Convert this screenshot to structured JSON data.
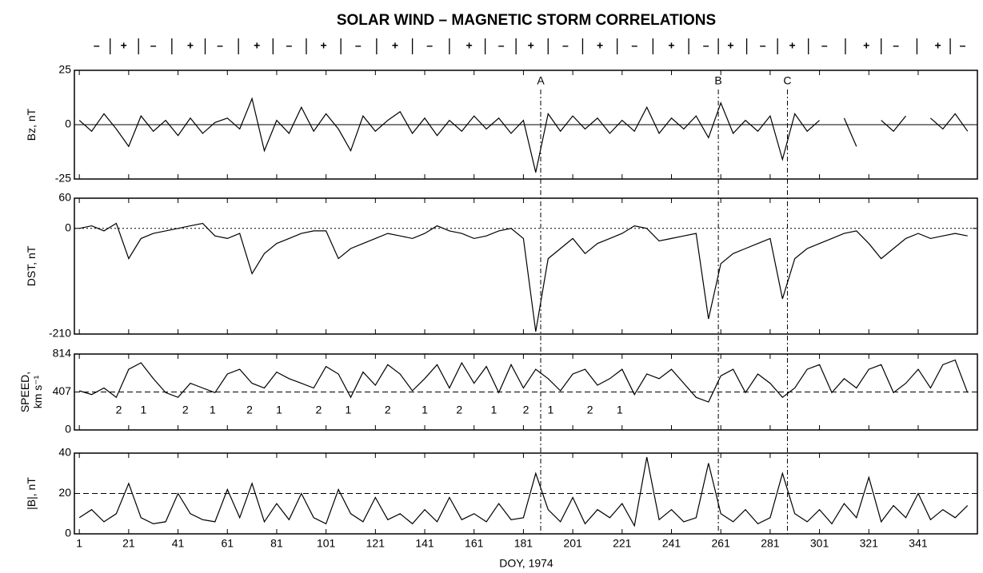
{
  "chart_data": [
    {
      "type": "line",
      "title": "SOLAR WIND – MAGNETIC STORM CORRELATIONS",
      "ylabel": [
        "Bz, nT"
      ],
      "color": "#000000",
      "xlim": [
        -1,
        365
      ],
      "ylim": [
        -25,
        25
      ],
      "yticks": [
        -25,
        0,
        25
      ],
      "ref_line": {
        "value": 0,
        "dash": "solid"
      },
      "sectors": [
        {
          "text": "–",
          "x": 8
        },
        {
          "text": "+",
          "x": 19
        },
        {
          "text": "–",
          "x": 31
        },
        {
          "text": "+",
          "x": 46
        },
        {
          "text": "–",
          "x": 58
        },
        {
          "text": "+",
          "x": 73
        },
        {
          "text": "–",
          "x": 86
        },
        {
          "text": "+",
          "x": 100
        },
        {
          "text": "–",
          "x": 114
        },
        {
          "text": "+",
          "x": 129
        },
        {
          "text": "–",
          "x": 143
        },
        {
          "text": "+",
          "x": 159
        },
        {
          "text": "–",
          "x": 172
        },
        {
          "text": "+",
          "x": 184
        },
        {
          "text": "–",
          "x": 198
        },
        {
          "text": "+",
          "x": 212
        },
        {
          "text": "–",
          "x": 226
        },
        {
          "text": "+",
          "x": 241
        },
        {
          "text": "–",
          "x": 255
        },
        {
          "text": "+",
          "x": 265
        },
        {
          "text": "–",
          "x": 278
        },
        {
          "text": "+",
          "x": 290
        },
        {
          "text": "–",
          "x": 303
        },
        {
          "text": "+",
          "x": 320
        },
        {
          "text": "–",
          "x": 332
        },
        {
          "text": "+",
          "x": 349
        },
        {
          "text": "–",
          "x": 359
        }
      ],
      "events": [
        {
          "text": "A",
          "x": 188
        },
        {
          "text": "B",
          "x": 260
        },
        {
          "text": "C",
          "x": 288
        }
      ],
      "x": [
        1,
        6,
        11,
        16,
        21,
        26,
        31,
        36,
        41,
        46,
        51,
        56,
        61,
        66,
        71,
        76,
        81,
        86,
        91,
        96,
        101,
        106,
        111,
        116,
        121,
        126,
        131,
        136,
        141,
        146,
        151,
        156,
        161,
        166,
        171,
        176,
        181,
        186,
        191,
        196,
        201,
        206,
        211,
        216,
        221,
        226,
        231,
        236,
        241,
        246,
        251,
        256,
        261,
        266,
        271,
        276,
        281,
        286,
        291,
        296,
        301,
        306,
        311,
        316,
        321,
        326,
        331,
        336,
        341,
        346,
        351,
        356,
        361
      ],
      "values": [
        2,
        -3,
        5,
        -2,
        -10,
        4,
        -3,
        2,
        -5,
        3,
        -4,
        1,
        3,
        -2,
        12,
        -12,
        2,
        -4,
        8,
        -3,
        5,
        -2,
        -12,
        4,
        -3,
        2,
        6,
        -4,
        3,
        -5,
        2,
        -3,
        4,
        -2,
        3,
        -4,
        2,
        -22,
        5,
        -3,
        4,
        -2,
        3,
        -4,
        2,
        -3,
        8,
        -4,
        3,
        -2,
        4,
        -6,
        10,
        -4,
        2,
        -3,
        4,
        -16,
        5,
        -3,
        2,
        null,
        3,
        -10,
        null,
        2,
        -3,
        4,
        null,
        3,
        -2,
        5,
        -3
      ]
    },
    {
      "type": "line",
      "ylabel": [
        "DST, nT"
      ],
      "color": "#000000",
      "xlim": [
        -1,
        365
      ],
      "ylim": [
        -210,
        60
      ],
      "yticks": [
        -210,
        0,
        60
      ],
      "ref_line": {
        "value": 0,
        "dash": "dotted"
      },
      "x": [
        1,
        6,
        11,
        16,
        21,
        26,
        31,
        36,
        41,
        46,
        51,
        56,
        61,
        66,
        71,
        76,
        81,
        86,
        91,
        96,
        101,
        106,
        111,
        116,
        121,
        126,
        131,
        136,
        141,
        146,
        151,
        156,
        161,
        166,
        171,
        176,
        181,
        186,
        191,
        196,
        201,
        206,
        211,
        216,
        221,
        226,
        231,
        236,
        241,
        246,
        251,
        256,
        261,
        266,
        271,
        276,
        281,
        286,
        291,
        296,
        301,
        306,
        311,
        316,
        321,
        326,
        331,
        336,
        341,
        346,
        351,
        356,
        361
      ],
      "values": [
        0,
        5,
        -5,
        10,
        -60,
        -20,
        -10,
        -5,
        0,
        5,
        10,
        -15,
        -20,
        -10,
        -90,
        -50,
        -30,
        -20,
        -10,
        -5,
        -5,
        -60,
        -40,
        -30,
        -20,
        -10,
        -15,
        -20,
        -10,
        5,
        -5,
        -10,
        -20,
        -15,
        -5,
        0,
        -20,
        -205,
        -60,
        -40,
        -20,
        -50,
        -30,
        -20,
        -10,
        5,
        0,
        -25,
        -20,
        -15,
        -10,
        -180,
        -70,
        -50,
        -40,
        -30,
        -20,
        -140,
        -60,
        -40,
        -30,
        -20,
        -10,
        -5,
        -30,
        -60,
        -40,
        -20,
        -10,
        -20,
        -15,
        -10,
        -15
      ]
    },
    {
      "type": "line",
      "ylabel": [
        "SPEED,",
        "km s⁻¹"
      ],
      "color": "#000000",
      "xlim": [
        -1,
        365
      ],
      "ylim": [
        0,
        814
      ],
      "yticks": [
        0,
        407,
        814
      ],
      "ref_line": {
        "value": 407,
        "dash": "dashed"
      },
      "annotations": [
        {
          "text": "2",
          "x": 17
        },
        {
          "text": "1",
          "x": 27
        },
        {
          "text": "2",
          "x": 44
        },
        {
          "text": "1",
          "x": 55
        },
        {
          "text": "2",
          "x": 70
        },
        {
          "text": "1",
          "x": 82
        },
        {
          "text": "2",
          "x": 98
        },
        {
          "text": "1",
          "x": 110
        },
        {
          "text": "2",
          "x": 126
        },
        {
          "text": "1",
          "x": 141
        },
        {
          "text": "2",
          "x": 155
        },
        {
          "text": "1",
          "x": 169
        },
        {
          "text": "2",
          "x": 182
        },
        {
          "text": "1",
          "x": 192
        },
        {
          "text": "2",
          "x": 208
        },
        {
          "text": "1",
          "x": 220
        }
      ],
      "x": [
        1,
        6,
        11,
        16,
        21,
        26,
        31,
        36,
        41,
        46,
        51,
        56,
        61,
        66,
        71,
        76,
        81,
        86,
        91,
        96,
        101,
        106,
        111,
        116,
        121,
        126,
        131,
        136,
        141,
        146,
        151,
        156,
        161,
        166,
        171,
        176,
        181,
        186,
        191,
        196,
        201,
        206,
        211,
        216,
        221,
        226,
        231,
        236,
        241,
        246,
        251,
        256,
        261,
        266,
        271,
        276,
        281,
        286,
        291,
        296,
        301,
        306,
        311,
        316,
        321,
        326,
        331,
        336,
        341,
        346,
        351,
        356,
        361
      ],
      "values": [
        420,
        380,
        450,
        350,
        650,
        720,
        550,
        400,
        350,
        500,
        450,
        400,
        600,
        650,
        500,
        450,
        620,
        550,
        500,
        450,
        680,
        600,
        350,
        620,
        480,
        700,
        600,
        420,
        550,
        700,
        450,
        720,
        500,
        680,
        400,
        700,
        450,
        650,
        550,
        420,
        600,
        650,
        480,
        550,
        650,
        380,
        600,
        550,
        650,
        500,
        350,
        300,
        580,
        650,
        400,
        600,
        500,
        350,
        450,
        650,
        700,
        400,
        550,
        450,
        650,
        700,
        400,
        500,
        650,
        450,
        700,
        750,
        400
      ]
    },
    {
      "type": "line",
      "ylabel": [
        "|B|, nT"
      ],
      "xlabel": "DOY, 1974",
      "color": "#000000",
      "xlim": [
        -1,
        365
      ],
      "ylim": [
        0,
        40
      ],
      "yticks": [
        0,
        20,
        40
      ],
      "ref_line": {
        "value": 20,
        "dash": "dashed"
      },
      "xticks": [
        1,
        21,
        41,
        61,
        81,
        101,
        121,
        141,
        161,
        181,
        201,
        221,
        241,
        261,
        281,
        301,
        321,
        341
      ],
      "x": [
        1,
        6,
        11,
        16,
        21,
        26,
        31,
        36,
        41,
        46,
        51,
        56,
        61,
        66,
        71,
        76,
        81,
        86,
        91,
        96,
        101,
        106,
        111,
        116,
        121,
        126,
        131,
        136,
        141,
        146,
        151,
        156,
        161,
        166,
        171,
        176,
        181,
        186,
        191,
        196,
        201,
        206,
        211,
        216,
        221,
        226,
        231,
        236,
        241,
        246,
        251,
        256,
        261,
        266,
        271,
        276,
        281,
        286,
        291,
        296,
        301,
        306,
        311,
        316,
        321,
        326,
        331,
        336,
        341,
        346,
        351,
        356,
        361
      ],
      "values": [
        8,
        12,
        6,
        10,
        25,
        8,
        5,
        6,
        20,
        10,
        7,
        6,
        22,
        8,
        25,
        6,
        15,
        7,
        20,
        8,
        5,
        22,
        10,
        6,
        18,
        7,
        10,
        5,
        12,
        6,
        18,
        7,
        10,
        6,
        15,
        7,
        8,
        30,
        12,
        6,
        18,
        5,
        12,
        8,
        15,
        4,
        38,
        7,
        12,
        6,
        8,
        35,
        10,
        6,
        12,
        5,
        8,
        30,
        10,
        6,
        12,
        5,
        15,
        8,
        28,
        6,
        14,
        8,
        20,
        7,
        12,
        8,
        14
      ]
    }
  ]
}
